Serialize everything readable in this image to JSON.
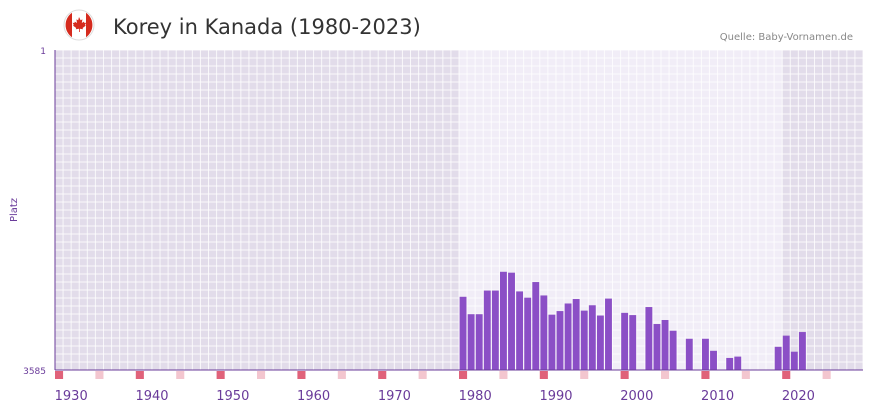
{
  "header": {
    "title": "Korey in Kanada (1980-2023)",
    "source": "Quelle: Baby-Vornamen.de",
    "flag_icon": "canada-flag-icon"
  },
  "colors": {
    "bar": "#8b4fc6",
    "axis_text": "#6a3b9a",
    "plot_bg_outside": "#e2dcea",
    "plot_bg_inside": "#f1edf7",
    "grid": "#ffffff",
    "tick_major": "#e0627a",
    "tick_minor": "#f3c6cf",
    "flag_red": "#d52b1e"
  },
  "chart_data": {
    "type": "bar",
    "title": "Korey in Kanada (1980-2023)",
    "ylabel": "Platz",
    "xlabel": "",
    "ylim": [
      3585,
      1
    ],
    "y_tick_labels": [
      "1",
      "3585"
    ],
    "x_range": [
      1928,
      2028
    ],
    "x_tick_labels": [
      "1930",
      "1940",
      "1950",
      "1960",
      "1970",
      "1980",
      "1990",
      "2000",
      "2010",
      "2020"
    ],
    "highlight_range": [
      1978,
      2018
    ],
    "years": [
      1978,
      1979,
      1980,
      1981,
      1982,
      1983,
      1984,
      1985,
      1986,
      1987,
      1988,
      1989,
      1990,
      1991,
      1992,
      1993,
      1994,
      1995,
      1996,
      1997,
      1998,
      1999,
      2000,
      2001,
      2002,
      2003,
      2004,
      2005,
      2006,
      2007,
      2008,
      2009,
      2010,
      2011,
      2012,
      2013,
      2014,
      2015,
      2016,
      2017,
      2018,
      2019,
      2020
    ],
    "values": [
      2765,
      2960,
      2960,
      2695,
      2695,
      2485,
      2495,
      2705,
      2775,
      2600,
      2750,
      2965,
      2925,
      2840,
      2790,
      2920,
      2860,
      2975,
      2785,
      null,
      2945,
      2970,
      null,
      2880,
      3070,
      3025,
      3145,
      null,
      3235,
      null,
      3235,
      3370,
      null,
      3450,
      3435,
      null,
      null,
      null,
      null,
      3325,
      3200,
      3380,
      3160
    ]
  }
}
